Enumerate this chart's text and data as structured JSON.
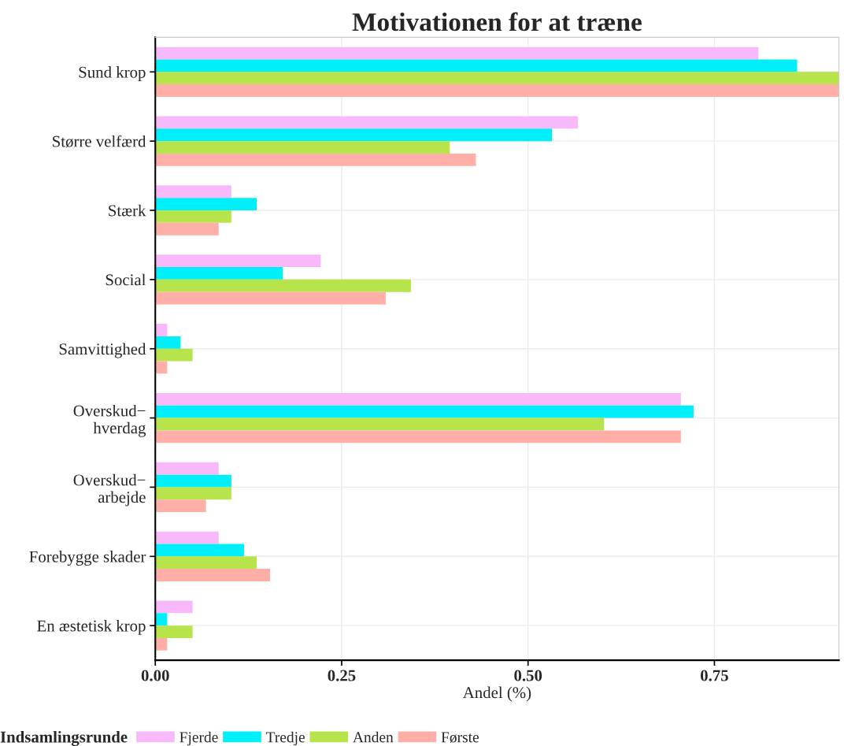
{
  "chart_data": {
    "type": "bar",
    "orientation": "horizontal",
    "title": "Motivationen for at træne",
    "xlabel": "Andel (%)",
    "legend_title": "Indsamlingsrunde",
    "legend": "bottom",
    "grid": true,
    "categories": [
      "Sund krop",
      "Større velfærd",
      "Stærk",
      "Social",
      "Samvittighed",
      "Overskud−\nhverdag",
      "Overskud−\narbejde",
      "Forebygge skader",
      "En æstetisk krop"
    ],
    "xlim": [
      0,
      0.917
    ],
    "xticks": [
      {
        "value": 0,
        "label": "0.00"
      },
      {
        "value": 0.25,
        "label": "0.25"
      },
      {
        "value": 0.5,
        "label": "0.50"
      },
      {
        "value": 0.75,
        "label": "0.75"
      }
    ],
    "series": [
      {
        "name": "Fjerde",
        "color": "#f7b9f9",
        "values": [
          0.809,
          0.567,
          0.102,
          0.222,
          0.016,
          0.705,
          0.085,
          0.085,
          0.05
        ]
      },
      {
        "name": "Tredje",
        "color": "#00eff8",
        "values": [
          0.861,
          0.532,
          0.136,
          0.171,
          0.034,
          0.722,
          0.102,
          0.119,
          0.016
        ]
      },
      {
        "name": "Anden",
        "color": "#b7e34b",
        "values": [
          0.917,
          0.395,
          0.102,
          0.343,
          0.05,
          0.602,
          0.102,
          0.136,
          0.05
        ]
      },
      {
        "name": "Første",
        "color": "#ffafa8",
        "values": [
          0.917,
          0.43,
          0.085,
          0.309,
          0.016,
          0.705,
          0.068,
          0.154,
          0.016
        ]
      }
    ]
  }
}
